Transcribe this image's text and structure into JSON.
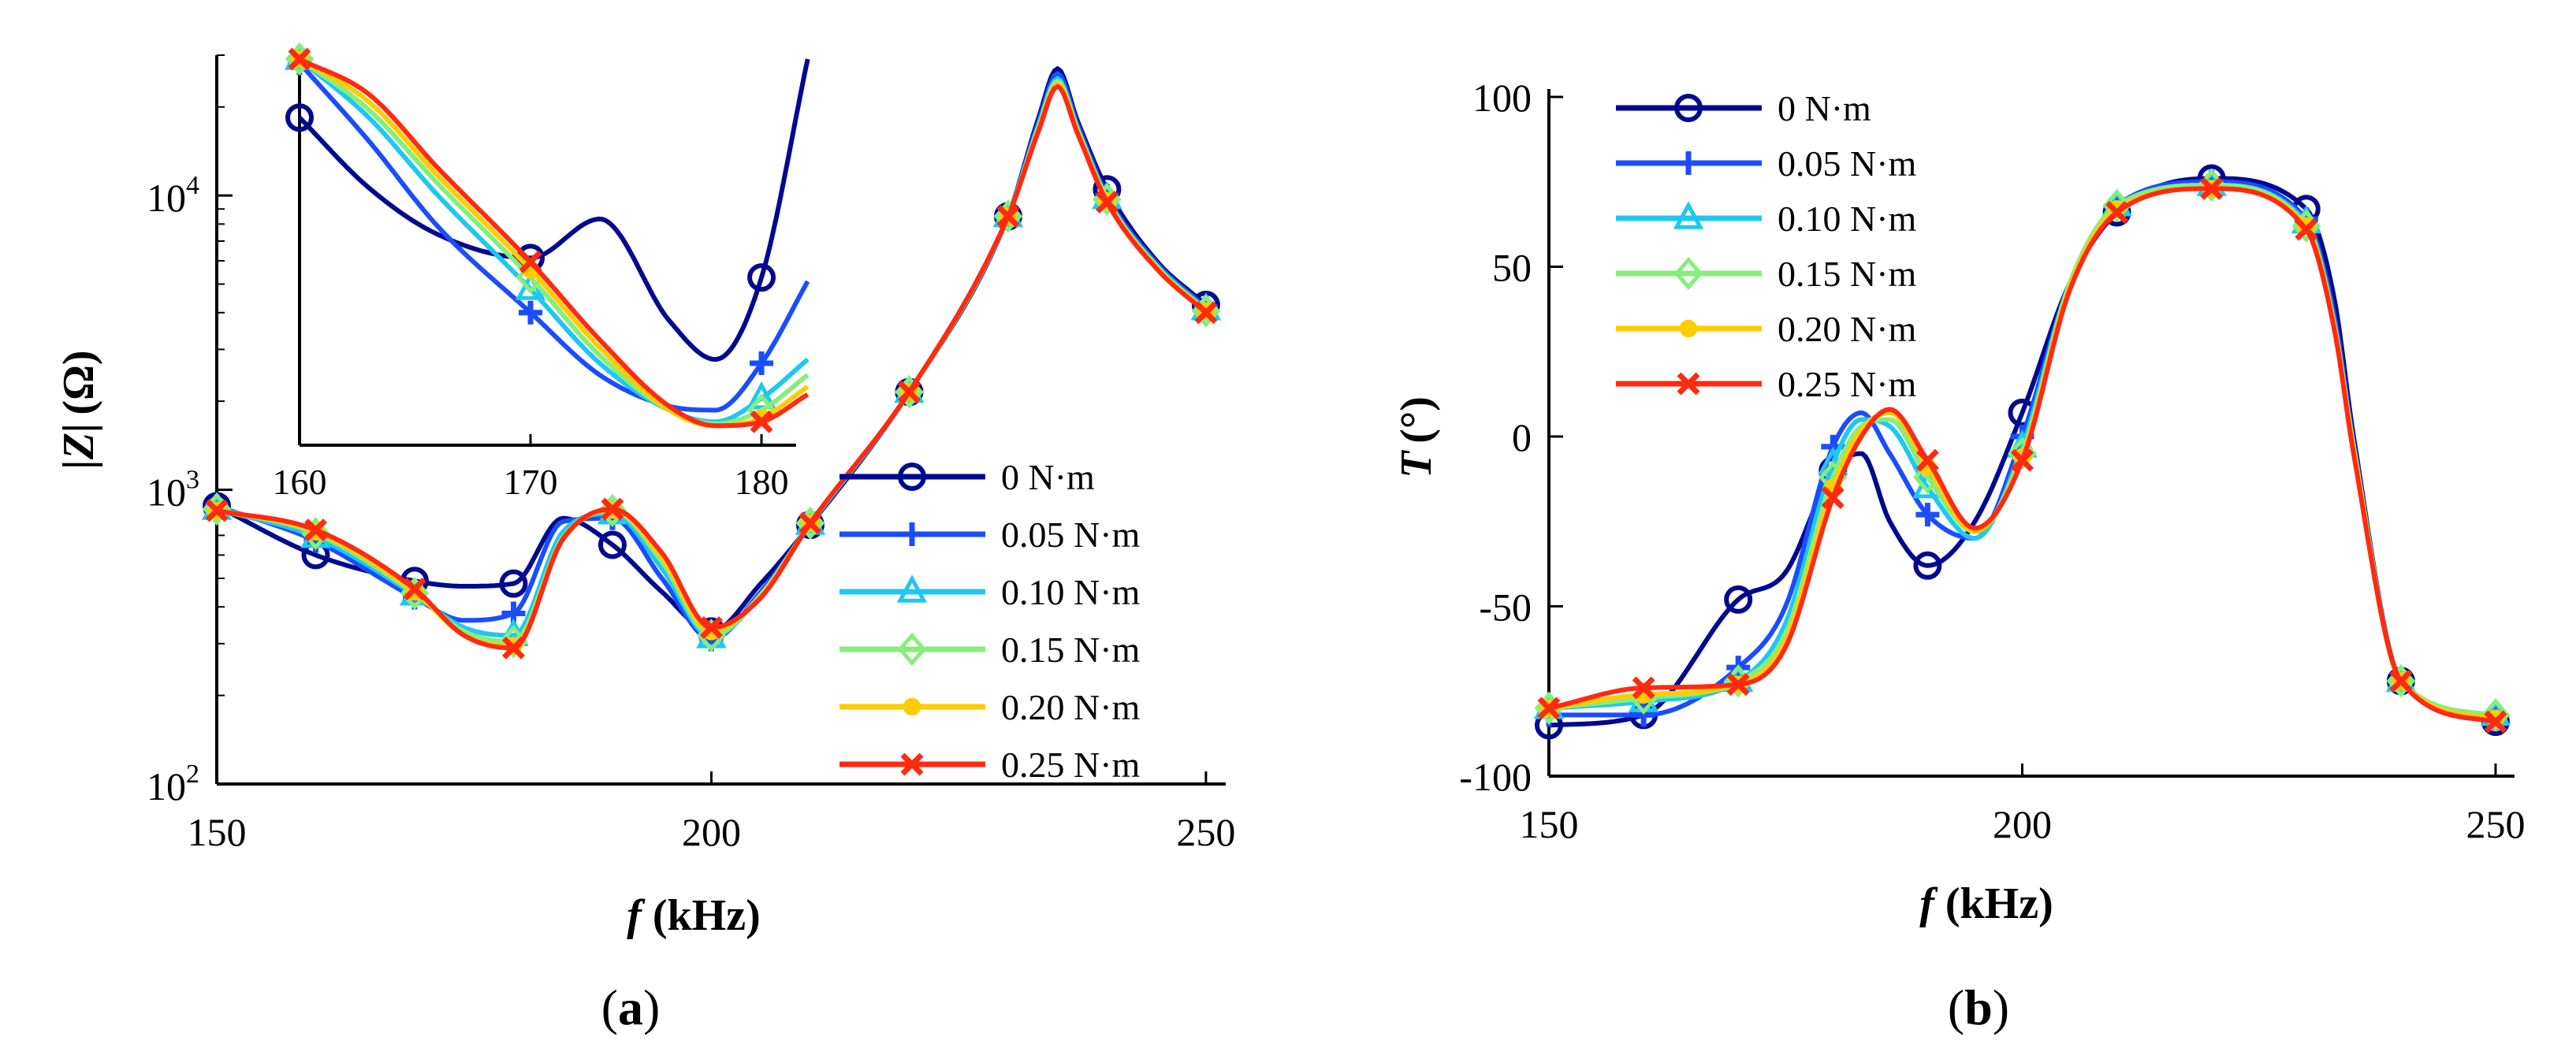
{
  "series_meta": [
    {
      "name": "0 N·m",
      "color": "#000a8f",
      "marker": "circle"
    },
    {
      "name": "0.05 N·m",
      "color": "#1a4dff",
      "marker": "plus"
    },
    {
      "name": "0.10 N·m",
      "color": "#1ec8f0",
      "marker": "triangle"
    },
    {
      "name": "0.15 N·m",
      "color": "#86ee7a",
      "marker": "diamond"
    },
    {
      "name": "0.20 N·m",
      "color": "#ffcc00",
      "marker": "dot"
    },
    {
      "name": "0.25 N·m",
      "color": "#ff2a10",
      "marker": "x"
    }
  ],
  "panels": {
    "a": {
      "label_pre": "(",
      "label_letter": "a",
      "label_post": ")"
    },
    "b": {
      "label_pre": "(",
      "label_letter": "b",
      "label_post": ")"
    }
  },
  "chart_data": [
    {
      "id": "a",
      "type": "line",
      "yscale": "log",
      "xlabel_symbol": "f",
      "xlabel_unit": "(kHz)",
      "ylabel_symbol": "|Z|",
      "ylabel_unit": "(Ω)",
      "xlim": [
        150,
        252
      ],
      "ylim": [
        100,
        30000
      ],
      "xticks": [
        150,
        200,
        250
      ],
      "xtick_labels": [
        "150",
        "200",
        "250"
      ],
      "yticks": [
        100,
        1000,
        10000
      ],
      "ytick_base": "10",
      "ytick_exponents": [
        "2",
        "3",
        "4"
      ],
      "legend_position": "bottom-right",
      "x": [
        150,
        160,
        170,
        175,
        180,
        185,
        190,
        195,
        200,
        205,
        210,
        220,
        230,
        233,
        235,
        237,
        240,
        245,
        250
      ],
      "series": [
        {
          "name": "0 N·m",
          "values": [
            880,
            600,
            490,
            470,
            480,
            800,
            650,
            450,
            330,
            480,
            760,
            2150,
            8500,
            18000,
            27000,
            18000,
            10500,
            6000,
            4250
          ]
        },
        {
          "name": "0.05 N·m",
          "values": [
            880,
            670,
            430,
            360,
            380,
            780,
            800,
            500,
            310,
            450,
            760,
            2150,
            8500,
            17500,
            26000,
            17500,
            10000,
            5900,
            4150
          ]
        },
        {
          "name": "0.10 N·m",
          "values": [
            860,
            690,
            440,
            340,
            320,
            720,
            830,
            540,
            315,
            440,
            765,
            2150,
            8500,
            17000,
            25000,
            17000,
            9800,
            5800,
            4100
          ]
        },
        {
          "name": "0.15 N·m",
          "values": [
            860,
            710,
            445,
            330,
            305,
            690,
            850,
            570,
            320,
            440,
            770,
            2150,
            8500,
            16800,
            24500,
            16800,
            9700,
            5750,
            4050
          ]
        },
        {
          "name": "0.20 N·m",
          "values": [
            850,
            720,
            450,
            320,
            295,
            680,
            855,
            590,
            330,
            435,
            770,
            2150,
            8500,
            16500,
            24000,
            16500,
            9600,
            5700,
            4050
          ]
        },
        {
          "name": "0.25 N·m",
          "values": [
            850,
            730,
            460,
            320,
            290,
            680,
            860,
            610,
            340,
            430,
            770,
            2150,
            8500,
            16300,
            23500,
            16300,
            9500,
            5650,
            4000
          ]
        }
      ],
      "marker_x": [
        150,
        160,
        170,
        180,
        190,
        200,
        210,
        220,
        230,
        240,
        250
      ],
      "inset": {
        "xlim": [
          160,
          181.5
        ],
        "ylim": [
          1600,
          11500
        ],
        "xticks": [
          160,
          170,
          180
        ],
        "xtick_labels": [
          "160",
          "170",
          "180"
        ],
        "x": [
          160,
          163,
          166,
          170,
          173,
          176,
          178,
          180,
          182
        ],
        "marker_x": [
          160,
          170,
          180
        ],
        "series": [
          {
            "name": "0 N·m",
            "values": [
              10000,
              8200,
              7000,
              6400,
              7400,
              4800,
              3800,
              5900,
              11500
            ]
          },
          {
            "name": "0.05 N·m",
            "values": [
              11400,
              9400,
              7200,
              5000,
              3400,
              2600,
              2500,
              3700,
              5800
            ]
          },
          {
            "name": "0.10 N·m",
            "values": [
              11500,
              10000,
              8000,
              5600,
              3700,
              2500,
              2200,
              2800,
              3800
            ]
          },
          {
            "name": "0.15 N·m",
            "values": [
              11500,
              10200,
              8300,
              5900,
              3900,
              2500,
              2150,
              2500,
              3400
            ]
          },
          {
            "name": "0.20 N·m",
            "values": [
              11500,
              10400,
              8500,
              6100,
              4100,
              2500,
              2100,
              2300,
              3100
            ]
          },
          {
            "name": "0.25 N·m",
            "values": [
              11500,
              10600,
              8700,
              6300,
              4300,
              2600,
              2100,
              2200,
              2900
            ]
          }
        ]
      }
    },
    {
      "id": "b",
      "type": "line",
      "yscale": "linear",
      "xlabel_symbol": "f",
      "xlabel_unit": "(kHz)",
      "ylabel_symbol": "T",
      "ylabel_unit": "(°)",
      "xlim": [
        150,
        252
      ],
      "ylim": [
        -100,
        100
      ],
      "xticks": [
        150,
        200,
        250
      ],
      "xtick_labels": [
        "150",
        "200",
        "250"
      ],
      "yticks": [
        -100,
        -50,
        0,
        50,
        100
      ],
      "ytick_labels": [
        "-100",
        "-50",
        "0",
        "50",
        "100"
      ],
      "legend_position": "top-left",
      "x": [
        150,
        160,
        170,
        175,
        180,
        183,
        186,
        190,
        195,
        200,
        205,
        210,
        220,
        230,
        233,
        235,
        240,
        250
      ],
      "series": [
        {
          "name": "0 N·m",
          "values": [
            -85,
            -82,
            -48,
            -40,
            -10,
            -5,
            -25,
            -38,
            -25,
            7,
            45,
            66,
            76,
            67,
            40,
            0,
            -72,
            -84
          ]
        },
        {
          "name": "0.05 N·m",
          "values": [
            -82,
            -82,
            -68,
            -50,
            -3,
            7,
            -5,
            -23,
            -30,
            0,
            45,
            68,
            75,
            64,
            35,
            -2,
            -72,
            -83
          ]
        },
        {
          "name": "0.10 N·m",
          "values": [
            -80,
            -78,
            -72,
            -55,
            -8,
            5,
            3,
            -15,
            -30,
            -3,
            45,
            68,
            74,
            63,
            33,
            -3,
            -72,
            -82
          ]
        },
        {
          "name": "0.15 N·m",
          "values": [
            -80,
            -77,
            -72,
            -58,
            -12,
            3,
            5,
            -12,
            -28,
            -5,
            45,
            68,
            74,
            62,
            32,
            -3,
            -72,
            -82
          ]
        },
        {
          "name": "0.20 N·m",
          "values": [
            -80,
            -76,
            -73,
            -60,
            -15,
            2,
            7,
            -9,
            -28,
            -6,
            44,
            67,
            73,
            62,
            32,
            -4,
            -72,
            -83
          ]
        },
        {
          "name": "0.25 N·m",
          "values": [
            -80,
            -74,
            -73,
            -62,
            -18,
            0,
            8,
            -7,
            -27,
            -7,
            43,
            66,
            73,
            61,
            31,
            -5,
            -72,
            -84
          ]
        }
      ],
      "marker_x": [
        150,
        160,
        170,
        180,
        190,
        200,
        210,
        220,
        230,
        240,
        250
      ]
    }
  ]
}
